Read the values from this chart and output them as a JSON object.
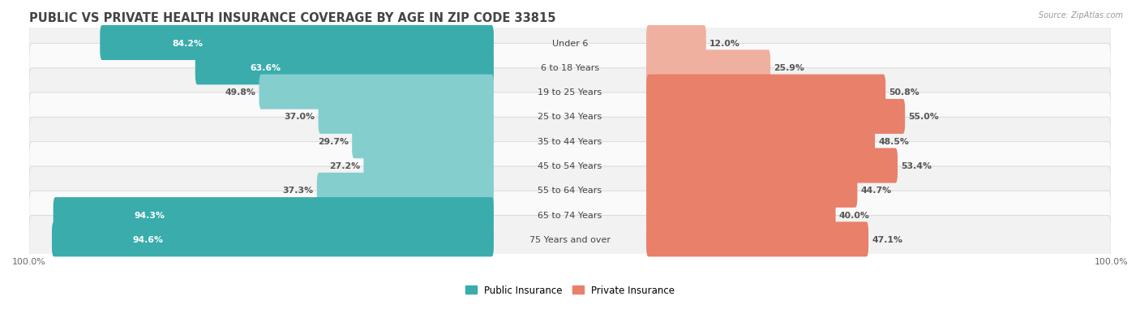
{
  "title": "PUBLIC VS PRIVATE HEALTH INSURANCE COVERAGE BY AGE IN ZIP CODE 33815",
  "source": "Source: ZipAtlas.com",
  "categories": [
    "Under 6",
    "6 to 18 Years",
    "19 to 25 Years",
    "25 to 34 Years",
    "35 to 44 Years",
    "45 to 54 Years",
    "55 to 64 Years",
    "65 to 74 Years",
    "75 Years and over"
  ],
  "public_values": [
    84.2,
    63.6,
    49.8,
    37.0,
    29.7,
    27.2,
    37.3,
    94.3,
    94.6
  ],
  "private_values": [
    12.0,
    25.9,
    50.8,
    55.0,
    48.5,
    53.4,
    44.7,
    40.0,
    47.1
  ],
  "public_color_dark": "#3aacac",
  "public_color_light": "#85cece",
  "private_color_dark": "#e8806a",
  "private_color_light": "#f0b0a0",
  "row_bg_even": "#f2f2f2",
  "row_bg_odd": "#fafafa",
  "title_color": "#444444",
  "label_color": "#444444",
  "value_color_dark": "#ffffff",
  "value_color_outside": "#555555",
  "title_fontsize": 10.5,
  "label_fontsize": 8.0,
  "value_fontsize": 7.8,
  "legend_fontsize": 8.5,
  "max_value": 100.0,
  "figsize": [
    14.06,
    4.14
  ],
  "dpi": 100,
  "pub_dark_threshold": 55,
  "priv_dark_threshold": 35
}
